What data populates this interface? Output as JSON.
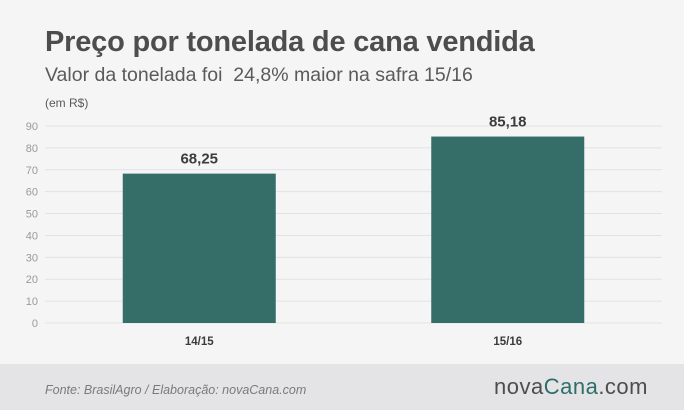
{
  "header": {
    "title": "Preço por tonelada de cana vendida",
    "subtitle": "Valor da tonelada foi  24,8% maior na safra 15/16",
    "unit": "(em R$)"
  },
  "footer": {
    "source": "Fonte: BrasilAgro / Elaboração: novaCana.com",
    "logo_part1": "nova",
    "logo_part2": "Cana",
    "logo_part3": ".com"
  },
  "colors": {
    "bar": "#356d69",
    "grid": "#e2e2e4",
    "axis_text": "#9a9a9a",
    "logo_accent": "#2d6e6a"
  },
  "chart_data": {
    "type": "bar",
    "categories": [
      "14/15",
      "15/16"
    ],
    "values": [
      68.25,
      85.18
    ],
    "value_labels": [
      "68,25",
      "85,18"
    ],
    "ylim": [
      0,
      90
    ],
    "yticks": [
      0,
      10,
      20,
      30,
      40,
      50,
      60,
      70,
      80,
      90
    ],
    "ylabel": "(em R$)",
    "grid": true,
    "legend": "none"
  }
}
